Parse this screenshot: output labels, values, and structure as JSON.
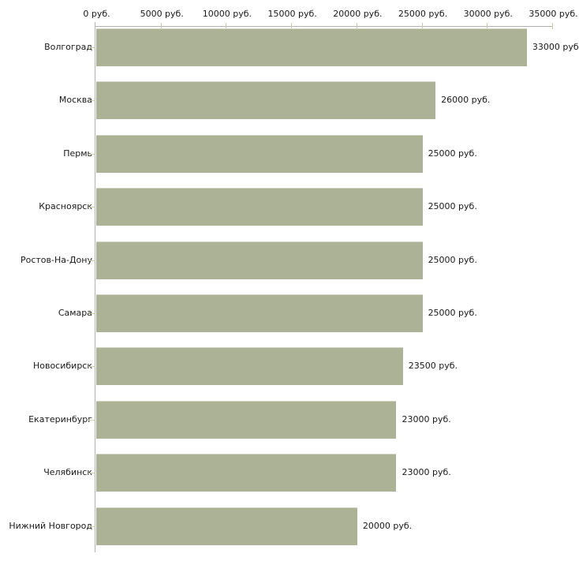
{
  "chart_data": {
    "type": "bar",
    "orientation": "horizontal",
    "title": "",
    "xlabel": "",
    "ylabel": "",
    "axis_position": "top",
    "grid": false,
    "legend": "none",
    "xlim": [
      0,
      35000
    ],
    "x_tick_values": [
      0,
      5000,
      10000,
      15000,
      20000,
      25000,
      30000,
      35000
    ],
    "x_tick_labels": [
      "0 руб.",
      "5000 руб.",
      "10000 руб.",
      "15000 руб.",
      "20000 руб.",
      "25000 руб.",
      "30000 руб.",
      "35000 руб."
    ],
    "categories": [
      "Волгоград",
      "Москва",
      "Пермь",
      "Красноярск",
      "Ростов-На-Дону",
      "Самара",
      "Новосибирск",
      "Екатеринбург",
      "Челябинск",
      "Нижний Новгород"
    ],
    "values": [
      33000,
      26000,
      25000,
      25000,
      25000,
      25000,
      23500,
      23000,
      23000,
      20000
    ],
    "value_labels": [
      "33000 руб",
      "26000 руб.",
      "25000 руб.",
      "25000 руб.",
      "25000 руб.",
      "25000 руб.",
      "23500 руб.",
      "23000 руб.",
      "23000 руб.",
      "20000 руб."
    ],
    "colors": {
      "bar": "#acb295",
      "bar_top_edge": "#d2d5c4",
      "axis_line": "#b3b3b3",
      "x_tick": "#c9cba4",
      "y_tick": "#cbcfae",
      "text": "#1a1a1a",
      "background": "#ffffff"
    }
  }
}
